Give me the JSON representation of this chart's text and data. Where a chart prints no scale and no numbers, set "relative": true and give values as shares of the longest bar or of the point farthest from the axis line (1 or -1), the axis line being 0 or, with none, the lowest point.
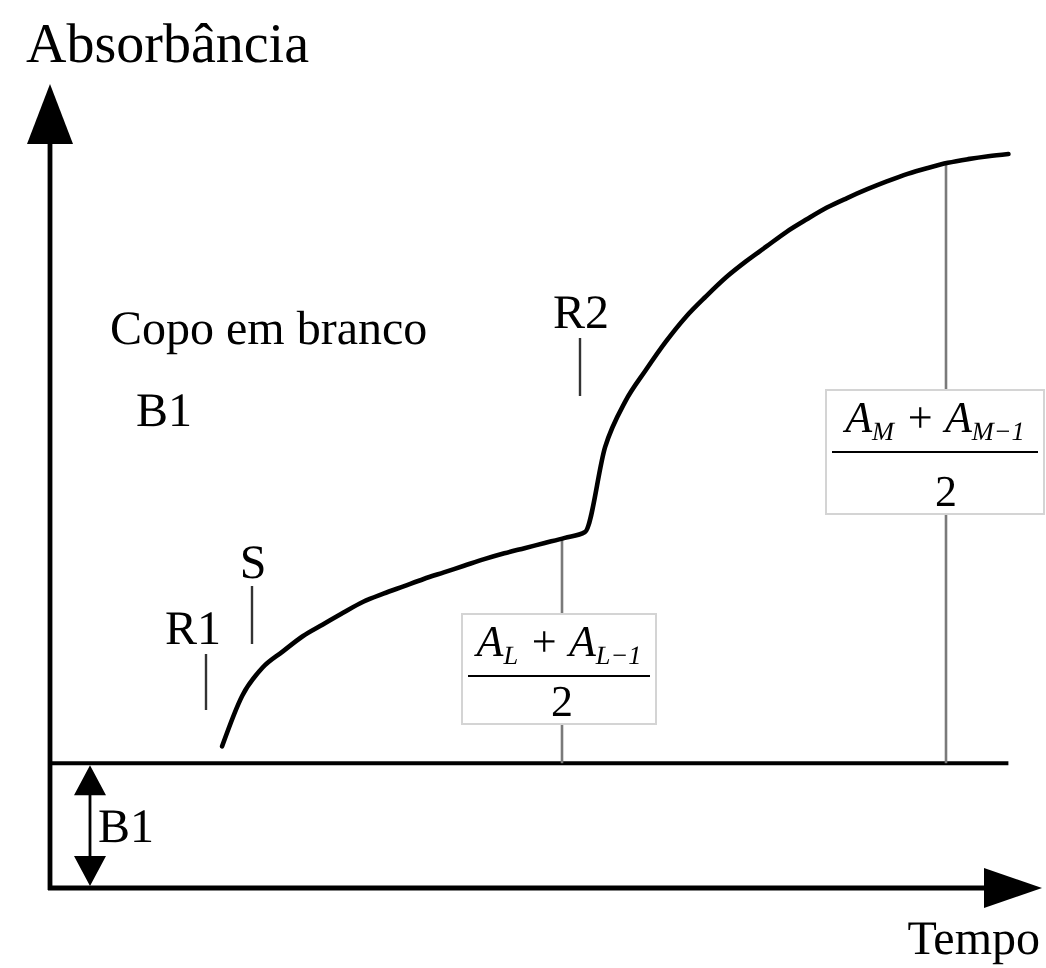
{
  "chart_data": {
    "type": "line",
    "relative": true,
    "xlabel": "Tempo",
    "ylabel": "Absorbância",
    "categories": [
      null,
      null,
      null,
      null,
      null,
      null,
      null,
      null,
      null,
      null,
      null,
      null,
      null,
      null,
      null,
      null,
      null,
      null,
      null,
      null,
      null,
      null,
      null,
      null,
      null,
      null,
      null,
      null,
      null,
      null,
      null,
      null,
      null,
      null,
      null,
      null,
      null,
      null,
      null,
      null,
      null,
      null,
      null,
      null,
      null,
      null,
      null,
      null
    ],
    "series": [
      {
        "color": "#000000",
        "values": [
          null,
          null,
          null,
          null,
          null,
          null,
          null,
          null,
          0.193,
          0.262,
          0.3,
          0.322,
          0.343,
          0.359,
          0.375,
          0.39,
          0.401,
          0.411,
          0.421,
          0.43,
          0.439,
          0.448,
          0.456,
          0.463,
          0.47,
          0.477,
          0.485,
          0.601,
          0.663,
          0.705,
          0.744,
          0.778,
          0.806,
          0.832,
          0.854,
          0.874,
          0.894,
          0.911,
          0.927,
          0.94,
          0.952,
          0.963,
          0.973,
          0.981,
          0.988,
          0.993,
          0.997,
          1
        ]
      }
    ],
    "ref_lines": [
      {
        "axis": "y",
        "value": 0.17,
        "label": "B1",
        "color": "#000000"
      }
    ],
    "annotations": [
      "Copo em branco",
      "B1",
      "R1",
      "S",
      "R2",
      {
        "text": "A$_{L}$ + A$_{L−1}$\n2",
        "y": 0.477
      },
      {
        "text": "A$_{M}$ + A$_{M−1}$\n2",
        "y": 0.988
      }
    ]
  }
}
